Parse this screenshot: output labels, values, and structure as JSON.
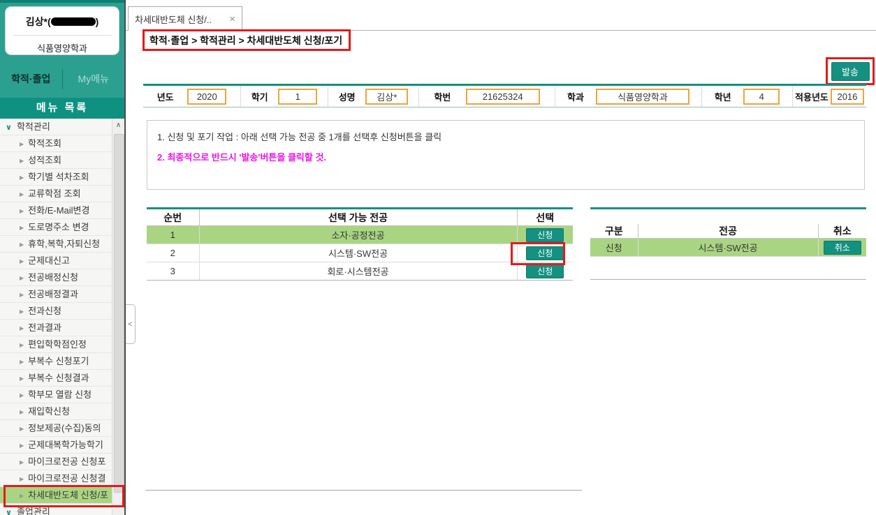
{
  "user": {
    "name": "김상*",
    "id_paren_open": "(",
    "id_paren_close": ")",
    "id_redacted": true,
    "department": "식품영양학과"
  },
  "sidebar": {
    "tabs": [
      {
        "label": "학적·졸업",
        "active": true
      },
      {
        "label": "My메뉴",
        "active": false
      }
    ],
    "menu_title": "메뉴 목록",
    "root_item": "학적관리",
    "items": [
      "학적조회",
      "성적조회",
      "학기별 석차조회",
      "교류학점 조회",
      "전화/E-Mail변경",
      "도로명주소 변경",
      "휴학,복학,자퇴신청",
      "군제대신고",
      "전공배정신청",
      "전공배정결과",
      "전과신청",
      "전과결과",
      "편입학학점인정",
      "부복수 신청포기",
      "부복수 신청결과",
      "학부모 열람 신청",
      "재입학신청",
      "정보제공(수집)동의",
      "군제대복학가능학기",
      "마이크로전공 신청포",
      "마이크로전공 신청결",
      "차세대반도체 신청/포"
    ],
    "selected_item": "차세대반도체 신청/포",
    "bottom_item": "졸업관리"
  },
  "tab": {
    "title": "차세대반도체 신청/..",
    "close_glyph": "×"
  },
  "breadcrumb": "학적·졸업 > 학적관리 > 차세대반도체 신청/포기",
  "send_button_label": "발송",
  "form": {
    "fields": [
      {
        "key": "year",
        "label": "년도",
        "value": "2020"
      },
      {
        "key": "semester",
        "label": "학기",
        "value": "1"
      },
      {
        "key": "name",
        "label": "성명",
        "value": "김상*"
      },
      {
        "key": "student-no",
        "label": "학번",
        "value": "21625324"
      },
      {
        "key": "department",
        "label": "학과",
        "value": "식품영양학과"
      },
      {
        "key": "grade",
        "label": "학년",
        "value": "4"
      },
      {
        "key": "applied-year",
        "label": "적용년도",
        "value": "2016"
      }
    ]
  },
  "instructions": {
    "line1": "1. 신청 및 포기 작업 : 아래 선택 가능 전공 중 1개를 선택후 신청버튼을 클릭",
    "line2": "2. 최종적으로 반드시 '발송'버튼을 클릭할 것."
  },
  "available_table": {
    "headers": [
      "순번",
      "선택 가능 전공",
      "선택"
    ],
    "apply_label": "신청",
    "rows": [
      {
        "no": "1",
        "major": "소자·공정전공",
        "highlight": true,
        "annotated": false
      },
      {
        "no": "2",
        "major": "시스템·SW전공",
        "highlight": false,
        "annotated": true
      },
      {
        "no": "3",
        "major": "회로·시스템전공",
        "highlight": false,
        "annotated": false
      }
    ]
  },
  "applied_table": {
    "headers": [
      "구분",
      "전공",
      "취소"
    ],
    "cancel_label": "취소",
    "rows": [
      {
        "type": "신청",
        "major": "시스템·SW전공"
      }
    ]
  },
  "icons": {
    "root_chevron": "∨",
    "sub_arrow": "▶",
    "scroll_up": "∧",
    "collapse": "<",
    "close": "×"
  },
  "colors": {
    "accent_teal": "#149180",
    "sidebar_teal": "#2BA091",
    "menu_band_teal": "#0F9181",
    "highlight_green": "#A9D583",
    "annotation_red": "#E51A1A",
    "notice_magenta": "#E816E8",
    "input_border_orange": "#EDA43B"
  }
}
